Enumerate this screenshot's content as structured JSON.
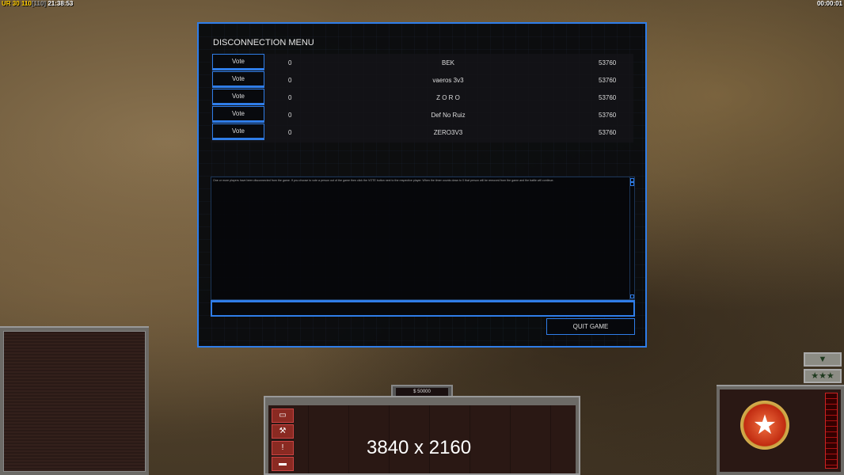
{
  "hud": {
    "status_prefix": "UR",
    "status_a": "30",
    "status_b": "110",
    "status_c": "[110]",
    "clock": "21:38:53",
    "timer": "00:00:01"
  },
  "dialog": {
    "title": "DISCONNECTION MENU",
    "players": [
      {
        "vote": "Vote",
        "count": "0",
        "name": "BEK",
        "ping": "53760"
      },
      {
        "vote": "Vote",
        "count": "0",
        "name": "vaeros 3v3",
        "ping": "53760"
      },
      {
        "vote": "Vote",
        "count": "0",
        "name": "Z O R O",
        "ping": "53760"
      },
      {
        "vote": "Vote",
        "count": "0",
        "name": "Def No Ruiz",
        "ping": "53760"
      },
      {
        "vote": "Vote",
        "count": "0",
        "name": "ZERO3V3",
        "ping": "53760"
      }
    ],
    "message": "One or more players have been disconnected from the game. If you choose to vote a person out of the game then click the VOTE button next to the respective player. When the timer counts down to 0 that person will be removed from the game and the battle will continue.",
    "chat_input": "",
    "quit_label": "QUIT GAME"
  },
  "bottom": {
    "money": "$ 50000",
    "resolution_overlay": "3840 x 2160"
  },
  "accent": "#2f7de8"
}
